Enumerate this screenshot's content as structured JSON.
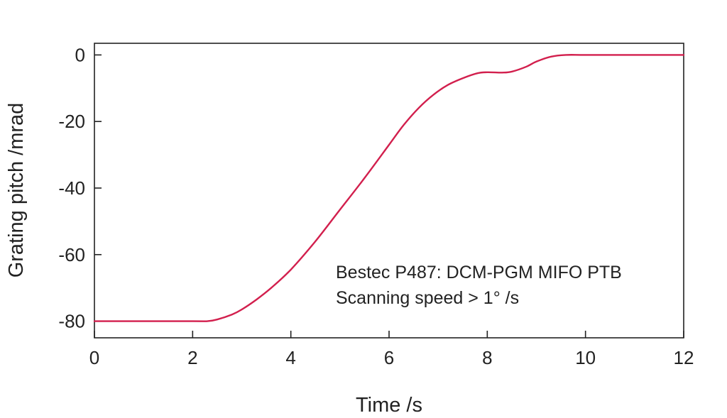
{
  "chart_data": {
    "type": "line",
    "title": "",
    "xlabel": "Time /s",
    "ylabel": "Grating pitch /mrad",
    "xlim": [
      0,
      12
    ],
    "ylim": [
      -85,
      3.5
    ],
    "x_ticks": [
      0,
      2,
      4,
      6,
      8,
      10,
      12
    ],
    "x_tick_labels": [
      "0",
      "2",
      "4",
      "6",
      "8",
      "10",
      "12"
    ],
    "y_ticks": [
      0,
      -20,
      -40,
      -60,
      -80
    ],
    "y_tick_labels": [
      "0",
      "-20",
      "-40",
      "-60",
      "-80"
    ],
    "grid": false,
    "annotations": [
      "Bestec P487: DCM-PGM MIFO PTB",
      "Scanning speed > 1° /s"
    ],
    "series": [
      {
        "color": "#d21f4d",
        "x": [
          0,
          2.0,
          2.3,
          2.5,
          2.8,
          3.0,
          3.3,
          3.6,
          4.0,
          4.5,
          5.0,
          5.5,
          6.0,
          6.3,
          6.6,
          6.9,
          7.2,
          7.5,
          7.8,
          8.0,
          8.3,
          8.5,
          8.8,
          9.0,
          9.3,
          9.6,
          10.0,
          11.0,
          12.0
        ],
        "y": [
          -80,
          -80,
          -80,
          -79.5,
          -78,
          -76.5,
          -73.5,
          -70,
          -64.5,
          -56,
          -46.5,
          -37,
          -27,
          -21,
          -16,
          -12,
          -9,
          -7,
          -5.5,
          -5.2,
          -5.3,
          -5,
          -3.5,
          -2,
          -0.5,
          0,
          0,
          0,
          0
        ]
      }
    ]
  }
}
